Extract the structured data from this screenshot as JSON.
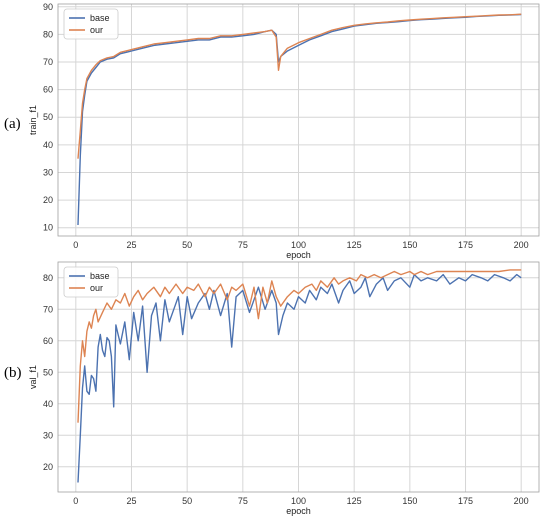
{
  "panel_labels": [
    "(a)",
    "(b)"
  ],
  "colors": {
    "base": "#4c72b0",
    "our": "#dd8452",
    "grid": "#d6d6d6",
    "axis": "#a0a0a0"
  },
  "chart_data": [
    {
      "type": "line",
      "ylabel": "train_f1",
      "xlabel": "epoch",
      "xlim": [
        -8,
        208
      ],
      "ylim": [
        7,
        91
      ],
      "xticks": [
        0,
        25,
        50,
        75,
        100,
        125,
        150,
        175,
        200
      ],
      "yticks": [
        10,
        20,
        30,
        40,
        50,
        60,
        70,
        80,
        90
      ],
      "grid": true,
      "legend": "top-left",
      "series": [
        {
          "name": "base",
          "color": "#4c72b0",
          "values": [
            [
              1,
              11
            ],
            [
              2,
              36
            ],
            [
              3,
              52
            ],
            [
              4,
              58
            ],
            [
              5,
              63
            ],
            [
              7,
              66
            ],
            [
              9,
              68
            ],
            [
              11,
              70
            ],
            [
              14,
              71
            ],
            [
              17,
              71.5
            ],
            [
              20,
              73
            ],
            [
              25,
              74
            ],
            [
              30,
              75
            ],
            [
              35,
              76
            ],
            [
              40,
              76.5
            ],
            [
              45,
              77
            ],
            [
              50,
              77.5
            ],
            [
              55,
              78
            ],
            [
              60,
              78
            ],
            [
              65,
              79
            ],
            [
              70,
              79
            ],
            [
              75,
              79.5
            ],
            [
              80,
              80
            ],
            [
              85,
              81
            ],
            [
              88,
              81.5
            ],
            [
              90,
              80
            ],
            [
              91,
              70
            ],
            [
              92,
              72
            ],
            [
              95,
              74
            ],
            [
              100,
              76
            ],
            [
              105,
              78
            ],
            [
              110,
              79.5
            ],
            [
              115,
              81
            ],
            [
              120,
              82
            ],
            [
              125,
              83
            ],
            [
              130,
              83.5
            ],
            [
              135,
              84
            ],
            [
              140,
              84.3
            ],
            [
              145,
              84.6
            ],
            [
              150,
              85
            ],
            [
              155,
              85.3
            ],
            [
              160,
              85.5
            ],
            [
              165,
              85.8
            ],
            [
              170,
              86
            ],
            [
              175,
              86.2
            ],
            [
              180,
              86.5
            ],
            [
              185,
              86.7
            ],
            [
              190,
              86.9
            ],
            [
              195,
              87
            ],
            [
              200,
              87.2
            ]
          ]
        },
        {
          "name": "our",
          "color": "#dd8452",
          "values": [
            [
              1,
              35
            ],
            [
              2,
              45
            ],
            [
              3,
              55
            ],
            [
              4,
              60
            ],
            [
              5,
              64
            ],
            [
              7,
              67
            ],
            [
              9,
              69
            ],
            [
              11,
              70.5
            ],
            [
              14,
              71.5
            ],
            [
              17,
              72
            ],
            [
              20,
              73.5
            ],
            [
              25,
              74.5
            ],
            [
              30,
              75.5
            ],
            [
              35,
              76.5
            ],
            [
              40,
              77
            ],
            [
              45,
              77.5
            ],
            [
              50,
              78
            ],
            [
              55,
              78.5
            ],
            [
              60,
              78.5
            ],
            [
              65,
              79.5
            ],
            [
              70,
              79.5
            ],
            [
              75,
              80
            ],
            [
              80,
              80.5
            ],
            [
              85,
              81
            ],
            [
              88,
              81.5
            ],
            [
              90,
              79
            ],
            [
              91,
              67
            ],
            [
              92,
              72
            ],
            [
              95,
              75
            ],
            [
              100,
              77
            ],
            [
              105,
              78.5
            ],
            [
              110,
              80
            ],
            [
              115,
              81.5
            ],
            [
              120,
              82.5
            ],
            [
              125,
              83.3
            ],
            [
              130,
              83.8
            ],
            [
              135,
              84.2
            ],
            [
              140,
              84.5
            ],
            [
              145,
              84.9
            ],
            [
              150,
              85.2
            ],
            [
              155,
              85.5
            ],
            [
              160,
              85.7
            ],
            [
              165,
              86
            ],
            [
              170,
              86.2
            ],
            [
              175,
              86.4
            ],
            [
              180,
              86.6
            ],
            [
              185,
              86.8
            ],
            [
              190,
              87
            ],
            [
              195,
              87.1
            ],
            [
              200,
              87.3
            ]
          ]
        }
      ]
    },
    {
      "type": "line",
      "ylabel": "val_f1",
      "xlabel": "epoch",
      "xlim": [
        -8,
        208
      ],
      "ylim": [
        12,
        85
      ],
      "xticks": [
        0,
        25,
        50,
        75,
        100,
        125,
        150,
        175,
        200
      ],
      "yticks": [
        20,
        30,
        40,
        50,
        60,
        70,
        80
      ],
      "grid": true,
      "legend": "top-left",
      "series": [
        {
          "name": "base",
          "color": "#4c72b0",
          "values": [
            [
              1,
              15
            ],
            [
              2,
              30
            ],
            [
              3,
              45
            ],
            [
              4,
              52
            ],
            [
              5,
              44
            ],
            [
              6,
              43
            ],
            [
              7,
              49
            ],
            [
              8,
              48
            ],
            [
              9,
              44
            ],
            [
              10,
              58
            ],
            [
              11,
              62
            ],
            [
              12,
              57
            ],
            [
              13,
              55
            ],
            [
              14,
              61
            ],
            [
              15,
              60
            ],
            [
              16,
              55
            ],
            [
              17,
              39
            ],
            [
              18,
              65
            ],
            [
              19,
              62
            ],
            [
              20,
              59
            ],
            [
              22,
              66
            ],
            [
              24,
              54
            ],
            [
              26,
              69
            ],
            [
              28,
              60
            ],
            [
              30,
              71
            ],
            [
              32,
              50
            ],
            [
              34,
              68
            ],
            [
              36,
              72
            ],
            [
              38,
              60
            ],
            [
              40,
              73
            ],
            [
              42,
              66
            ],
            [
              44,
              70
            ],
            [
              46,
              74
            ],
            [
              48,
              62
            ],
            [
              50,
              74
            ],
            [
              52,
              67
            ],
            [
              55,
              72
            ],
            [
              58,
              75
            ],
            [
              60,
              70
            ],
            [
              62,
              76
            ],
            [
              65,
              68
            ],
            [
              68,
              75
            ],
            [
              70,
              58
            ],
            [
              72,
              74
            ],
            [
              75,
              76
            ],
            [
              78,
              69
            ],
            [
              80,
              73
            ],
            [
              82,
              77
            ],
            [
              85,
              70
            ],
            [
              88,
              76
            ],
            [
              90,
              72
            ],
            [
              91,
              62
            ],
            [
              93,
              68
            ],
            [
              95,
              72
            ],
            [
              98,
              70
            ],
            [
              100,
              74
            ],
            [
              103,
              72
            ],
            [
              105,
              76
            ],
            [
              108,
              73
            ],
            [
              110,
              77
            ],
            [
              113,
              75
            ],
            [
              115,
              78
            ],
            [
              118,
              72
            ],
            [
              120,
              76
            ],
            [
              123,
              79
            ],
            [
              125,
              75
            ],
            [
              128,
              77
            ],
            [
              130,
              80
            ],
            [
              132,
              74
            ],
            [
              135,
              78
            ],
            [
              138,
              80
            ],
            [
              140,
              76
            ],
            [
              143,
              79
            ],
            [
              146,
              80
            ],
            [
              150,
              77
            ],
            [
              152,
              81
            ],
            [
              155,
              79
            ],
            [
              158,
              80
            ],
            [
              162,
              79
            ],
            [
              165,
              81
            ],
            [
              168,
              78
            ],
            [
              172,
              80
            ],
            [
              175,
              79
            ],
            [
              178,
              81
            ],
            [
              182,
              80
            ],
            [
              185,
              79
            ],
            [
              188,
              81
            ],
            [
              192,
              80
            ],
            [
              195,
              79
            ],
            [
              198,
              81
            ],
            [
              200,
              80
            ]
          ]
        },
        {
          "name": "our",
          "color": "#dd8452",
          "values": [
            [
              1,
              34
            ],
            [
              2,
              52
            ],
            [
              3,
              60
            ],
            [
              4,
              55
            ],
            [
              5,
              63
            ],
            [
              6,
              66
            ],
            [
              7,
              64
            ],
            [
              8,
              68
            ],
            [
              9,
              70
            ],
            [
              10,
              66
            ],
            [
              12,
              69
            ],
            [
              14,
              72
            ],
            [
              16,
              70
            ],
            [
              18,
              73
            ],
            [
              20,
              72
            ],
            [
              22,
              75
            ],
            [
              24,
              71
            ],
            [
              26,
              74
            ],
            [
              28,
              76
            ],
            [
              30,
              73
            ],
            [
              32,
              75
            ],
            [
              35,
              77
            ],
            [
              38,
              74
            ],
            [
              40,
              77
            ],
            [
              42,
              75
            ],
            [
              45,
              78
            ],
            [
              48,
              75
            ],
            [
              50,
              77
            ],
            [
              53,
              76
            ],
            [
              55,
              78
            ],
            [
              58,
              74
            ],
            [
              60,
              77
            ],
            [
              62,
              75
            ],
            [
              65,
              78
            ],
            [
              68,
              73
            ],
            [
              70,
              77
            ],
            [
              72,
              76
            ],
            [
              75,
              78
            ],
            [
              78,
              71
            ],
            [
              80,
              77
            ],
            [
              82,
              67
            ],
            [
              84,
              77
            ],
            [
              86,
              72
            ],
            [
              88,
              79
            ],
            [
              90,
              74
            ],
            [
              92,
              71
            ],
            [
              95,
              74
            ],
            [
              98,
              76
            ],
            [
              100,
              75
            ],
            [
              103,
              77
            ],
            [
              106,
              78
            ],
            [
              108,
              76
            ],
            [
              110,
              79
            ],
            [
              113,
              77
            ],
            [
              116,
              80
            ],
            [
              118,
              78
            ],
            [
              120,
              79
            ],
            [
              123,
              80
            ],
            [
              126,
              79
            ],
            [
              128,
              81
            ],
            [
              131,
              80
            ],
            [
              134,
              81
            ],
            [
              137,
              80
            ],
            [
              140,
              81
            ],
            [
              143,
              82
            ],
            [
              146,
              81
            ],
            [
              150,
              82
            ],
            [
              152,
              81
            ],
            [
              155,
              82
            ],
            [
              158,
              81
            ],
            [
              162,
              82
            ],
            [
              165,
              82
            ],
            [
              170,
              82
            ],
            [
              175,
              82
            ],
            [
              180,
              82
            ],
            [
              185,
              82
            ],
            [
              190,
              82
            ],
            [
              195,
              82.5
            ],
            [
              200,
              82.5
            ]
          ]
        }
      ]
    }
  ]
}
